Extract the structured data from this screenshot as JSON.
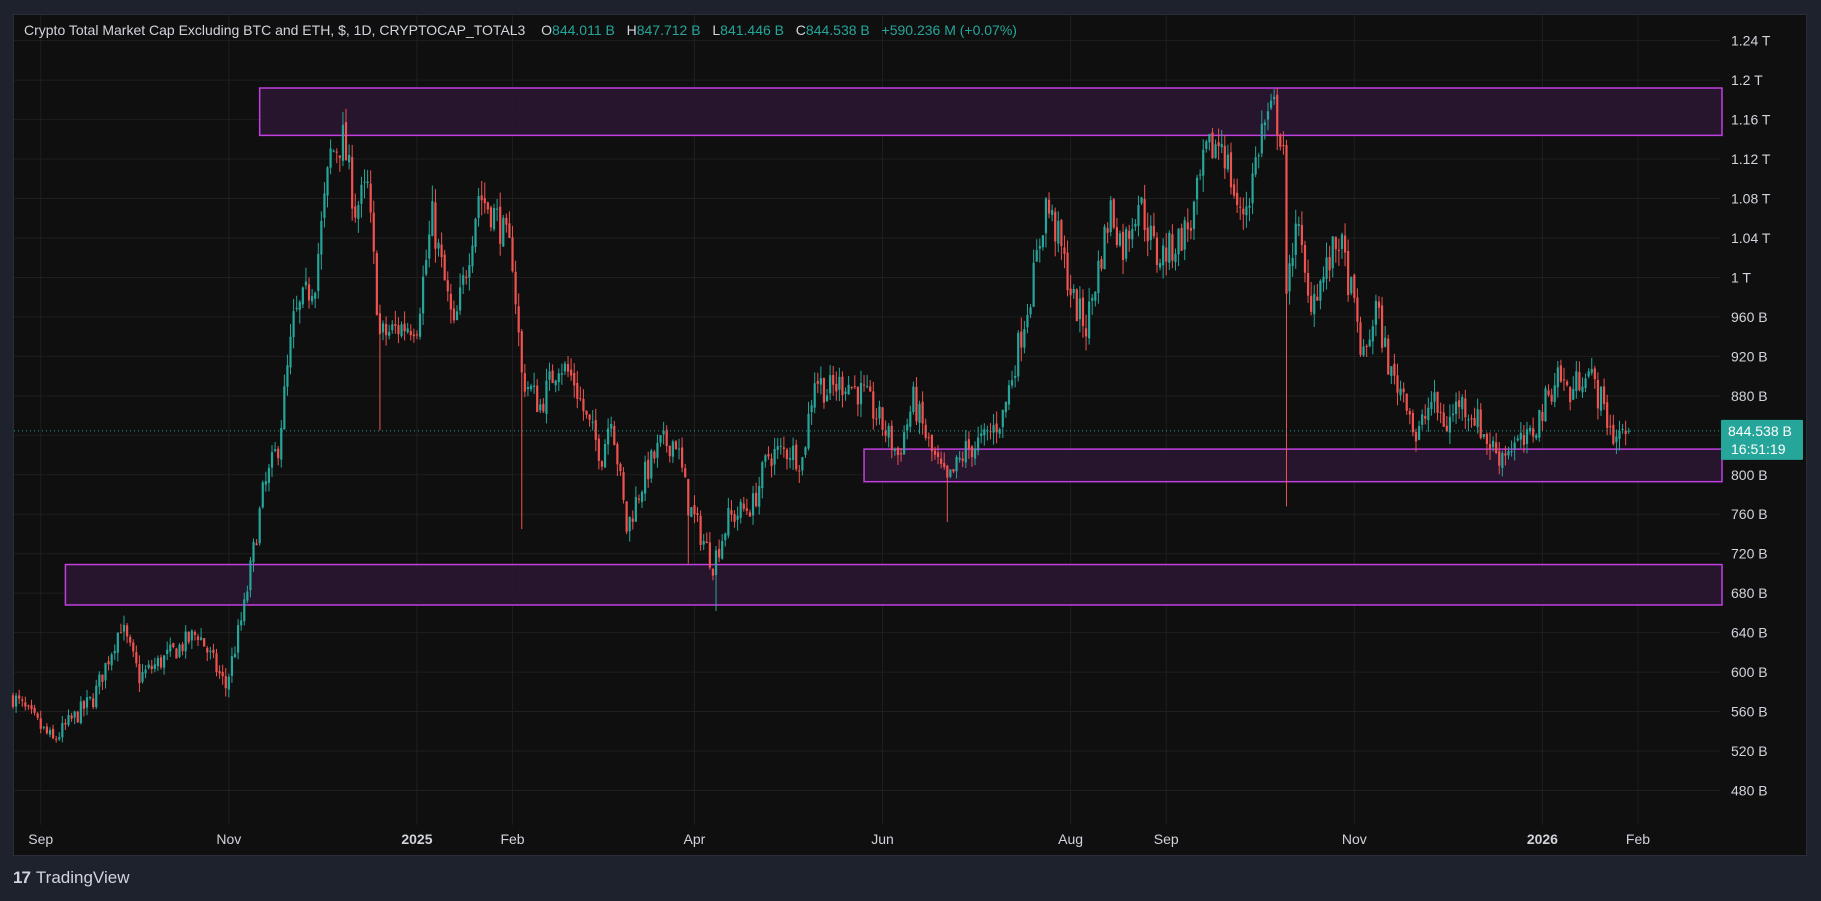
{
  "header": {
    "title": "Crypto Total Market Cap Excluding BTC and ETH, $, 1D, CRYPTOCAP_TOTAL3",
    "open_label": "O",
    "open": "844.011 B",
    "high_label": "H",
    "high": "847.712 B",
    "low_label": "L",
    "low": "841.446 B",
    "close_label": "C",
    "close": "844.538 B",
    "change": "+590.236 M (+0.07%)"
  },
  "price_tag": {
    "price": "844.538 B",
    "countdown": "16:51:19"
  },
  "branding": {
    "logo_text": "TradingView",
    "logo_mark": "17"
  },
  "colors": {
    "up": "#26a69a",
    "down": "#ef5350",
    "zone_border": "#c040e0",
    "zone_fill": "#2b1533",
    "background": "#0f0f0f"
  },
  "chart_data": {
    "type": "candlestick",
    "y_unit": "USD billions",
    "ylim": [
      445,
      1265
    ],
    "y_ticks": [
      {
        "value": 480,
        "label": "480 B"
      },
      {
        "value": 520,
        "label": "520 B"
      },
      {
        "value": 560,
        "label": "560 B"
      },
      {
        "value": 600,
        "label": "600 B"
      },
      {
        "value": 640,
        "label": "640 B"
      },
      {
        "value": 680,
        "label": "680 B"
      },
      {
        "value": 720,
        "label": "720 B"
      },
      {
        "value": 760,
        "label": "760 B"
      },
      {
        "value": 800,
        "label": "800 B"
      },
      {
        "value": 840,
        "label": "840 B"
      },
      {
        "value": 880,
        "label": "880 B"
      },
      {
        "value": 920,
        "label": "920 B"
      },
      {
        "value": 960,
        "label": "960 B"
      },
      {
        "value": 1000,
        "label": "1 T"
      },
      {
        "value": 1040,
        "label": "1.04 T"
      },
      {
        "value": 1080,
        "label": "1.08 T"
      },
      {
        "value": 1120,
        "label": "1.12 T"
      },
      {
        "value": 1160,
        "label": "1.16 T"
      },
      {
        "value": 1200,
        "label": "1.2 T"
      },
      {
        "value": 1240,
        "label": "1.24 T"
      }
    ],
    "x_ticks": [
      {
        "date": "2024-09-01",
        "label": "Sep",
        "bold": false
      },
      {
        "date": "2024-11-01",
        "label": "Nov",
        "bold": false
      },
      {
        "date": "2025-01-01",
        "label": "2025",
        "bold": true
      },
      {
        "date": "2025-02-01",
        "label": "Feb",
        "bold": false
      },
      {
        "date": "2025-04-01",
        "label": "Apr",
        "bold": false
      },
      {
        "date": "2025-06-01",
        "label": "Jun",
        "bold": false
      },
      {
        "date": "2025-08-01",
        "label": "Aug",
        "bold": false
      },
      {
        "date": "2025-09-01",
        "label": "Sep",
        "bold": false
      },
      {
        "date": "2025-11-01",
        "label": "Nov",
        "bold": false
      },
      {
        "date": "2026-01-01",
        "label": "2026",
        "bold": true
      },
      {
        "date": "2026-02-01",
        "label": "Feb",
        "bold": false
      }
    ],
    "x_range": [
      "2024-08-23",
      "2026-02-25"
    ],
    "last_close": 844.538,
    "zones": [
      {
        "from_date": "2024-11-11",
        "low": 1144,
        "high": 1192
      },
      {
        "from_date": "2025-05-26",
        "low": 793,
        "high": 826
      },
      {
        "from_date": "2024-09-09",
        "low": 668,
        "high": 709
      }
    ],
    "price_path": [
      [
        "2024-08-23",
        575
      ],
      [
        "2024-09-05",
        530
      ],
      [
        "2024-09-10",
        548
      ],
      [
        "2024-09-18",
        573
      ],
      [
        "2024-09-27",
        648
      ],
      [
        "2024-10-03",
        595
      ],
      [
        "2024-10-13",
        618
      ],
      [
        "2024-10-22",
        640
      ],
      [
        "2024-10-31",
        585
      ],
      [
        "2024-11-06",
        665
      ],
      [
        "2024-11-12",
        780
      ],
      [
        "2024-11-17",
        830
      ],
      [
        "2024-11-22",
        955
      ],
      [
        "2024-11-29",
        1000
      ],
      [
        "2024-12-04",
        1125
      ],
      [
        "2024-12-08",
        1140
      ],
      [
        "2024-12-12",
        1070
      ],
      [
        "2024-12-16",
        1090
      ],
      [
        "2024-12-20",
        940
      ],
      [
        "2024-12-27",
        950
      ],
      [
        "2025-01-01",
        955
      ],
      [
        "2025-01-06",
        1060
      ],
      [
        "2025-01-13",
        945
      ],
      [
        "2025-01-17",
        1010
      ],
      [
        "2025-01-21",
        1085
      ],
      [
        "2025-01-27",
        1060
      ],
      [
        "2025-02-01",
        1020
      ],
      [
        "2025-02-04",
        900
      ],
      [
        "2025-02-10",
        870
      ],
      [
        "2025-02-16",
        915
      ],
      [
        "2025-02-21",
        895
      ],
      [
        "2025-02-25",
        855
      ],
      [
        "2025-03-02",
        820
      ],
      [
        "2025-03-05",
        865
      ],
      [
        "2025-03-10",
        745
      ],
      [
        "2025-03-16",
        800
      ],
      [
        "2025-03-21",
        830
      ],
      [
        "2025-03-26",
        835
      ],
      [
        "2025-03-30",
        770
      ],
      [
        "2025-04-07",
        710
      ],
      [
        "2025-04-12",
        755
      ],
      [
        "2025-04-20",
        770
      ],
      [
        "2025-04-25",
        820
      ],
      [
        "2025-05-02",
        825
      ],
      [
        "2025-05-06",
        815
      ],
      [
        "2025-05-10",
        900
      ],
      [
        "2025-05-14",
        885
      ],
      [
        "2025-05-20",
        895
      ],
      [
        "2025-05-26",
        880
      ],
      [
        "2025-06-01",
        850
      ],
      [
        "2025-06-06",
        820
      ],
      [
        "2025-06-11",
        875
      ],
      [
        "2025-06-17",
        822
      ],
      [
        "2025-06-22",
        790
      ],
      [
        "2025-06-28",
        825
      ],
      [
        "2025-07-04",
        835
      ],
      [
        "2025-07-10",
        860
      ],
      [
        "2025-07-15",
        930
      ],
      [
        "2025-07-20",
        1000
      ],
      [
        "2025-07-24",
        1075
      ],
      [
        "2025-07-28",
        1040
      ],
      [
        "2025-08-02",
        975
      ],
      [
        "2025-08-06",
        950
      ],
      [
        "2025-08-10",
        1010
      ],
      [
        "2025-08-14",
        1070
      ],
      [
        "2025-08-18",
        1030
      ],
      [
        "2025-08-23",
        1080
      ],
      [
        "2025-08-29",
        1020
      ],
      [
        "2025-09-03",
        1030
      ],
      [
        "2025-09-09",
        1055
      ],
      [
        "2025-09-14",
        1125
      ],
      [
        "2025-09-19",
        1140
      ],
      [
        "2025-09-25",
        1060
      ],
      [
        "2025-09-28",
        1085
      ],
      [
        "2025-10-02",
        1150
      ],
      [
        "2025-10-06",
        1170
      ],
      [
        "2025-10-09",
        1135
      ],
      [
        "2025-10-10",
        970
      ],
      [
        "2025-10-13",
        1065
      ],
      [
        "2025-10-17",
        975
      ],
      [
        "2025-10-22",
        1000
      ],
      [
        "2025-10-27",
        1040
      ],
      [
        "2025-10-31",
        985
      ],
      [
        "2025-11-04",
        915
      ],
      [
        "2025-11-08",
        970
      ],
      [
        "2025-11-13",
        900
      ],
      [
        "2025-11-18",
        880
      ],
      [
        "2025-11-21",
        835
      ],
      [
        "2025-11-26",
        875
      ],
      [
        "2025-12-01",
        850
      ],
      [
        "2025-12-05",
        875
      ],
      [
        "2025-12-10",
        860
      ],
      [
        "2025-12-14",
        835
      ],
      [
        "2025-12-18",
        820
      ],
      [
        "2025-12-22",
        830
      ],
      [
        "2025-12-27",
        832
      ],
      [
        "2026-01-01",
        865
      ],
      [
        "2026-01-06",
        905
      ],
      [
        "2026-01-10",
        880
      ],
      [
        "2026-01-15",
        910
      ],
      [
        "2026-01-20",
        875
      ],
      [
        "2026-01-24",
        840
      ],
      [
        "2026-01-29",
        844.538
      ]
    ],
    "wick_events": [
      {
        "date": "2024-12-20",
        "low": 845
      },
      {
        "date": "2025-02-04",
        "low": 745
      },
      {
        "date": "2025-03-30",
        "low": 710
      },
      {
        "date": "2025-04-08",
        "low": 662
      },
      {
        "date": "2025-10-10",
        "low": 768
      },
      {
        "date": "2025-06-22",
        "low": 752
      }
    ]
  }
}
